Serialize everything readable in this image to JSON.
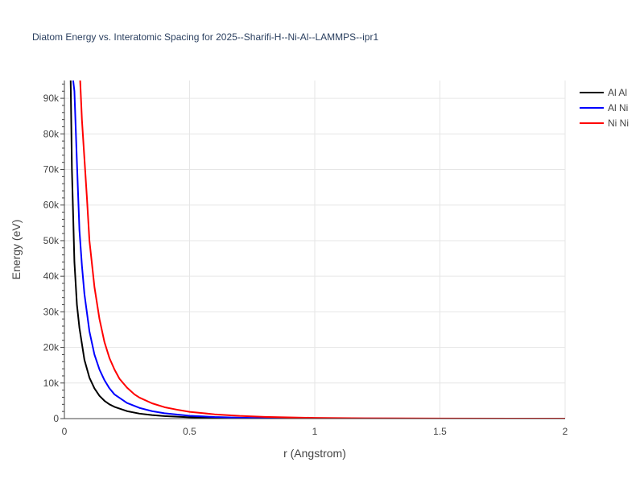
{
  "chart_data": {
    "type": "line",
    "title": "Diatom Energy vs. Interatomic Spacing for 2025--Sharifi-H--Ni-Al--LAMMPS--ipr1",
    "xlabel": "r (Angstrom)",
    "ylabel": "Energy (eV)",
    "xlim": [
      0,
      2
    ],
    "ylim": [
      0,
      95000
    ],
    "x_ticks": [
      0,
      0.5,
      1,
      1.5,
      2
    ],
    "x_tick_labels": [
      "0",
      "0.5",
      "1",
      "1.5",
      "2"
    ],
    "y_ticks": [
      0,
      10000,
      20000,
      30000,
      40000,
      50000,
      60000,
      70000,
      80000,
      90000
    ],
    "y_tick_labels": [
      "0",
      "10k",
      "20k",
      "30k",
      "40k",
      "50k",
      "60k",
      "70k",
      "80k",
      "90k"
    ],
    "grid": true,
    "legend_position": "top-right",
    "series": [
      {
        "name": "Al Al",
        "color": "#000000",
        "x": [
          0.025,
          0.03,
          0.04,
          0.05,
          0.06,
          0.08,
          0.1,
          0.12,
          0.14,
          0.16,
          0.18,
          0.2,
          0.25,
          0.3,
          0.35,
          0.4,
          0.5,
          0.6,
          0.7,
          0.8,
          1.0,
          1.2,
          1.5,
          2.0
        ],
        "y": [
          95000,
          70000,
          44000,
          32000,
          25500,
          16500,
          11500,
          8500,
          6400,
          5000,
          4000,
          3300,
          2100,
          1400,
          1000,
          700,
          380,
          220,
          120,
          70,
          20,
          5,
          0,
          0
        ]
      },
      {
        "name": "Al Ni",
        "color": "#0000ff",
        "x": [
          0.035,
          0.04,
          0.05,
          0.06,
          0.07,
          0.08,
          0.1,
          0.12,
          0.14,
          0.16,
          0.18,
          0.2,
          0.25,
          0.3,
          0.35,
          0.4,
          0.5,
          0.6,
          0.7,
          0.8,
          1.0,
          1.2,
          1.5,
          2.0
        ],
        "y": [
          95000,
          92000,
          72000,
          53000,
          43000,
          35000,
          24500,
          18000,
          13800,
          10800,
          8500,
          6800,
          4400,
          3000,
          2100,
          1500,
          800,
          450,
          260,
          150,
          50,
          15,
          2,
          0
        ]
      },
      {
        "name": "Ni Ni",
        "color": "#ff0000",
        "x": [
          0.063,
          0.07,
          0.08,
          0.09,
          0.1,
          0.12,
          0.14,
          0.16,
          0.18,
          0.2,
          0.22,
          0.25,
          0.28,
          0.3,
          0.35,
          0.4,
          0.45,
          0.5,
          0.6,
          0.7,
          0.8,
          1.0,
          1.2,
          1.5,
          2.0
        ],
        "y": [
          95000,
          84000,
          73000,
          62000,
          50000,
          37000,
          28000,
          21500,
          17000,
          13800,
          11200,
          8700,
          6800,
          5900,
          4300,
          3200,
          2500,
          1900,
          1200,
          750,
          480,
          200,
          80,
          20,
          2
        ]
      }
    ]
  }
}
